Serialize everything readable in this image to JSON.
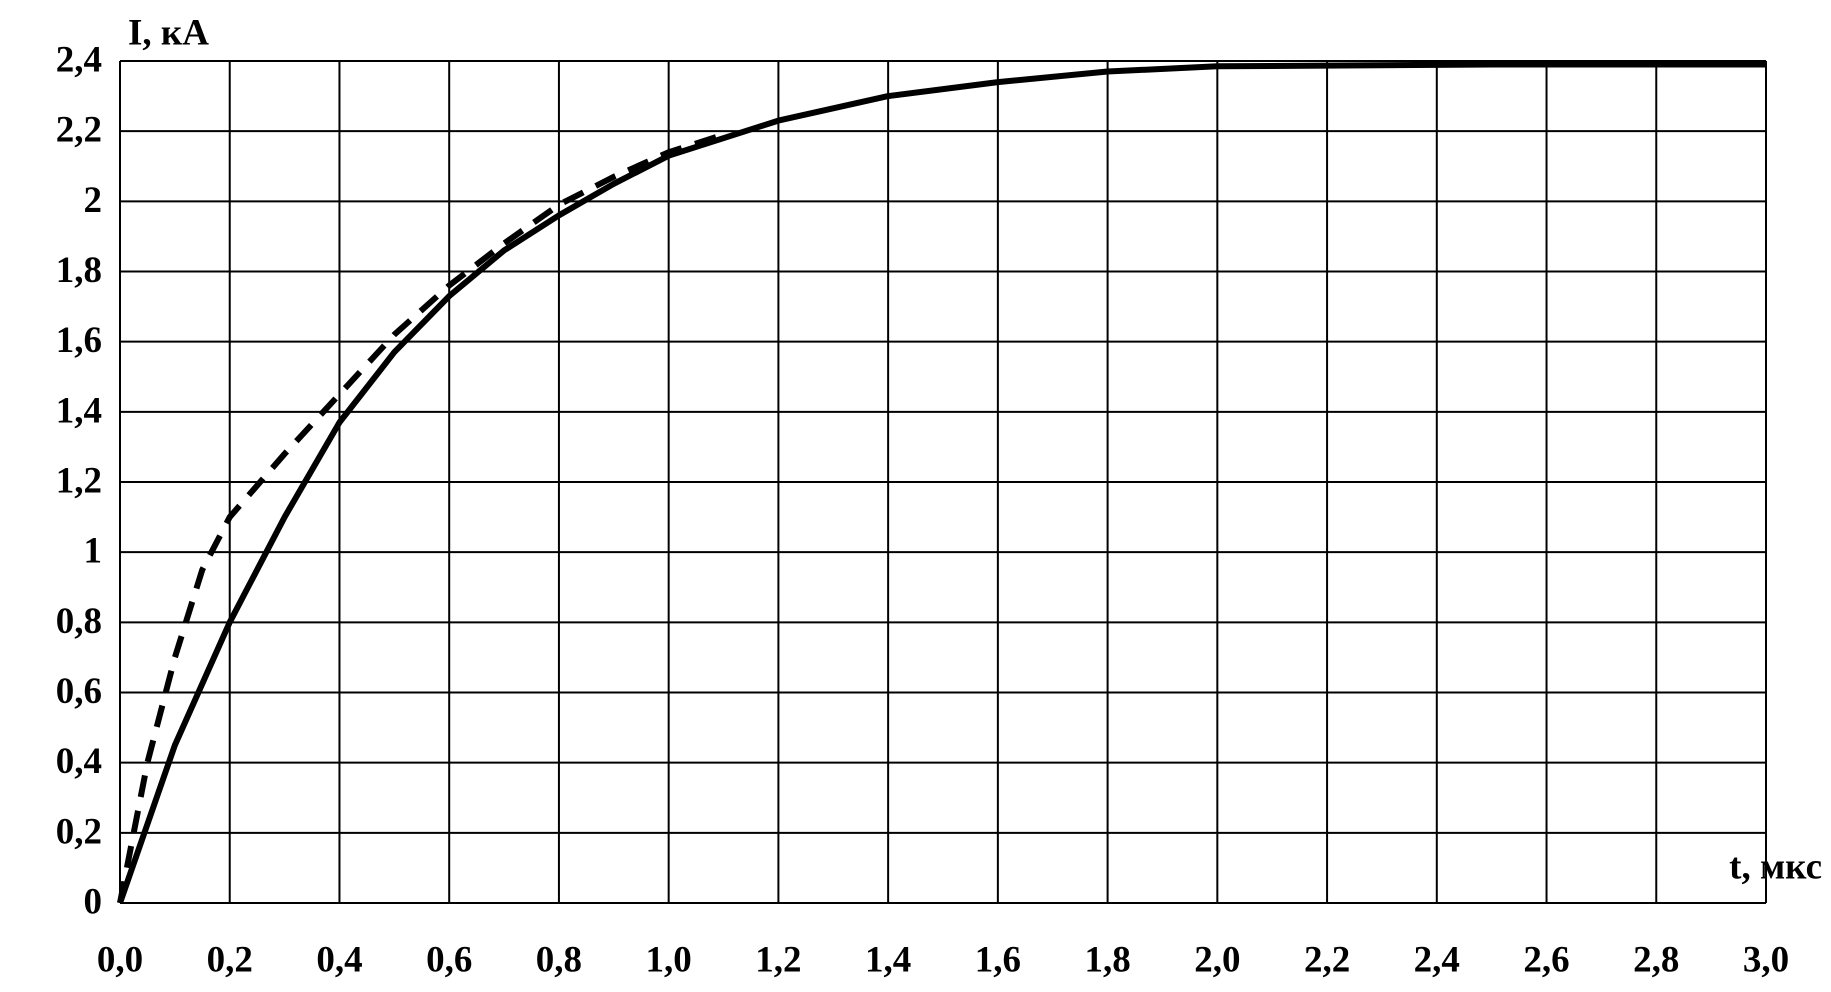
{
  "chart_data": {
    "type": "line",
    "x_label": "t, мкс",
    "y_label": "I, кА",
    "xlim": [
      0,
      3
    ],
    "ylim": [
      0,
      2.4
    ],
    "xticks": [
      {
        "value": 0,
        "label": "0,0"
      },
      {
        "value": 0.2,
        "label": "0,2"
      },
      {
        "value": 0.4,
        "label": "0,4"
      },
      {
        "value": 0.6,
        "label": "0,6"
      },
      {
        "value": 0.8,
        "label": "0,8"
      },
      {
        "value": 1.0,
        "label": "1,0"
      },
      {
        "value": 1.2,
        "label": "1,2"
      },
      {
        "value": 1.4,
        "label": "1,4"
      },
      {
        "value": 1.6,
        "label": "1,6"
      },
      {
        "value": 1.8,
        "label": "1,8"
      },
      {
        "value": 2.0,
        "label": "2,0"
      },
      {
        "value": 2.2,
        "label": "2,2"
      },
      {
        "value": 2.4,
        "label": "2,4"
      },
      {
        "value": 2.6,
        "label": "2,6"
      },
      {
        "value": 2.8,
        "label": "2,8"
      },
      {
        "value": 3.0,
        "label": "3,0"
      }
    ],
    "yticks": [
      0,
      {
        "value": 0.2,
        "label": "0,2"
      },
      {
        "value": 0.4,
        "label": "0,4"
      },
      {
        "value": 0.6,
        "label": "0,6"
      },
      {
        "value": 0.8,
        "label": "0,8"
      },
      1,
      {
        "value": 1.2,
        "label": "1,2"
      },
      {
        "value": 1.4,
        "label": "1,4"
      },
      {
        "value": 1.6,
        "label": "1,6"
      },
      {
        "value": 1.8,
        "label": "1,8"
      },
      2,
      {
        "value": 2.2,
        "label": "2,2"
      },
      {
        "value": 2.4,
        "label": "2,4"
      }
    ],
    "grid": true,
    "series": [
      {
        "color": "#000000",
        "dash": false,
        "x": [
          0,
          0.1,
          0.2,
          0.3,
          0.4,
          0.5,
          0.6,
          0.7,
          0.8,
          0.9,
          1.0,
          1.2,
          1.4,
          1.6,
          1.8,
          2.0,
          2.5,
          3.0
        ],
        "values": [
          0,
          0.45,
          0.8,
          1.1,
          1.37,
          1.57,
          1.73,
          1.86,
          1.96,
          2.05,
          2.13,
          2.23,
          2.3,
          2.34,
          2.37,
          2.385,
          2.39,
          2.39
        ]
      },
      {
        "color": "#000000",
        "dash": true,
        "x": [
          0,
          0.05,
          0.1,
          0.15,
          0.2,
          0.3,
          0.4,
          0.5,
          0.6,
          0.7,
          0.8,
          0.9,
          1.0,
          1.1
        ],
        "values": [
          0,
          0.4,
          0.7,
          0.95,
          1.1,
          1.28,
          1.45,
          1.62,
          1.76,
          1.88,
          1.99,
          2.07,
          2.14,
          2.19
        ]
      }
    ]
  }
}
